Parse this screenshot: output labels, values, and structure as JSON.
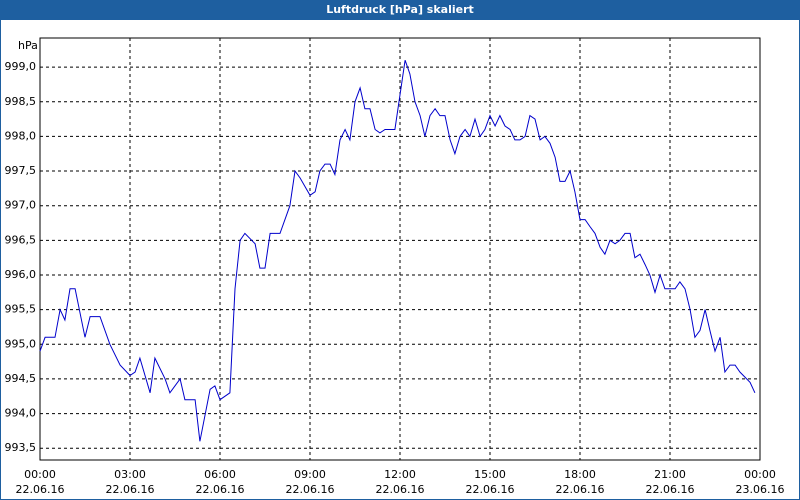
{
  "chart_data": {
    "type": "line",
    "title": "Luftdruck [hPa] skaliert",
    "y_unit": "hPa",
    "xlim": [
      0,
      24
    ],
    "ylim": [
      993.33,
      999.42
    ],
    "xticks": [
      {
        "value": 0,
        "label": "00:00"
      },
      {
        "value": 3,
        "label": "03:00"
      },
      {
        "value": 6,
        "label": "06:00"
      },
      {
        "value": 9,
        "label": "09:00"
      },
      {
        "value": 12,
        "label": "12:00"
      },
      {
        "value": 15,
        "label": "15:00"
      },
      {
        "value": 18,
        "label": "18:00"
      },
      {
        "value": 21,
        "label": "21:00"
      },
      {
        "value": 24,
        "label": "00:00"
      }
    ],
    "xtick_dates": [
      "22.06.16",
      "22.06.16",
      "22.06.16",
      "22.06.16",
      "22.06.16",
      "22.06.16",
      "22.06.16",
      "22.06.16",
      "23.06.16"
    ],
    "yticks": [
      {
        "value": 993.5,
        "label": "993,5"
      },
      {
        "value": 994,
        "label": "994,0"
      },
      {
        "value": 994.5,
        "label": "994,5"
      },
      {
        "value": 995,
        "label": "995,0"
      },
      {
        "value": 995.5,
        "label": "995,5"
      },
      {
        "value": 996,
        "label": "996,0"
      },
      {
        "value": 996.5,
        "label": "996,5"
      },
      {
        "value": 997,
        "label": "997,0"
      },
      {
        "value": 997.5,
        "label": "997,5"
      },
      {
        "value": 998,
        "label": "998,0"
      },
      {
        "value": 998.5,
        "label": "998,5"
      },
      {
        "value": 999,
        "label": "999,0"
      }
    ],
    "grid": true,
    "color": "#0000cc",
    "x": [
      0,
      0.17,
      0.5,
      0.67,
      0.83,
      1,
      1.17,
      1.5,
      1.67,
      2,
      2.33,
      2.67,
      3,
      3.17,
      3.33,
      3.67,
      3.83,
      4.17,
      4.33,
      4.67,
      4.83,
      5.17,
      5.33,
      5.67,
      5.83,
      6,
      6.33,
      6.5,
      6.67,
      6.83,
      7.17,
      7.33,
      7.5,
      7.67,
      8,
      8.33,
      8.5,
      8.67,
      9,
      9.17,
      9.33,
      9.5,
      9.67,
      9.83,
      10,
      10.17,
      10.33,
      10.5,
      10.67,
      10.83,
      11,
      11.17,
      11.33,
      11.5,
      11.83,
      12.17,
      12.33,
      12.5,
      12.67,
      12.83,
      13,
      13.17,
      13.33,
      13.5,
      13.67,
      13.83,
      14,
      14.17,
      14.33,
      14.5,
      14.67,
      14.83,
      15,
      15.17,
      15.33,
      15.5,
      15.67,
      15.83,
      16,
      16.17,
      16.33,
      16.5,
      16.67,
      16.83,
      17,
      17.17,
      17.33,
      17.5,
      17.67,
      17.83,
      18,
      18.17,
      18.33,
      18.5,
      18.67,
      18.83,
      19,
      19.17,
      19.33,
      19.5,
      19.67,
      19.83,
      20,
      20.17,
      20.33,
      20.5,
      20.67,
      20.83,
      21.17,
      21.33,
      21.5,
      21.67,
      21.83,
      22,
      22.17,
      22.33,
      22.5,
      22.67,
      22.83,
      23,
      23.17,
      23.33,
      23.67,
      23.83
    ],
    "values": [
      994.9,
      995.1,
      995.1,
      995.5,
      995.35,
      995.8,
      995.8,
      995.1,
      995.4,
      995.4,
      995.0,
      994.7,
      994.55,
      994.6,
      994.8,
      994.3,
      994.8,
      994.5,
      994.3,
      994.5,
      994.2,
      994.2,
      993.6,
      994.35,
      994.4,
      994.2,
      994.3,
      995.8,
      996.5,
      996.6,
      996.45,
      996.1,
      996.1,
      996.6,
      996.6,
      997.0,
      997.5,
      997.4,
      997.15,
      997.2,
      997.5,
      997.6,
      997.6,
      997.45,
      997.95,
      998.1,
      997.95,
      998.5,
      998.7,
      998.4,
      998.4,
      998.1,
      998.05,
      998.1,
      998.1,
      999.1,
      998.9,
      998.5,
      998.3,
      998.0,
      998.3,
      998.4,
      998.3,
      998.3,
      997.95,
      997.75,
      998.0,
      998.1,
      998.0,
      998.25,
      998.0,
      998.1,
      998.3,
      998.15,
      998.3,
      998.15,
      998.1,
      997.95,
      997.95,
      998.0,
      998.3,
      998.25,
      997.95,
      998.0,
      997.9,
      997.7,
      997.35,
      997.35,
      997.5,
      997.2,
      996.8,
      996.8,
      996.7,
      996.6,
      996.4,
      996.3,
      996.5,
      996.45,
      996.5,
      996.6,
      996.6,
      996.25,
      996.3,
      996.15,
      996.0,
      995.75,
      996.0,
      995.8,
      995.8,
      995.9,
      995.8,
      995.5,
      995.1,
      995.2,
      995.5,
      995.2,
      994.9,
      995.1,
      994.6,
      994.7,
      994.7,
      994.6,
      994.45,
      994.3
    ]
  }
}
